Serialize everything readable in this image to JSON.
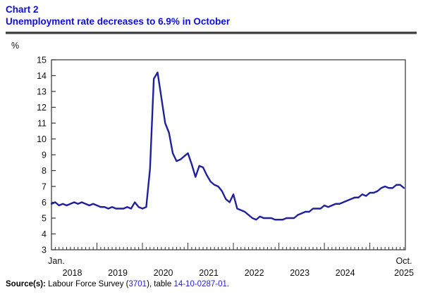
{
  "header": {
    "chart_label": "Chart 2",
    "chart_title": "Unemployment rate decreases to 6.9% in October"
  },
  "footer": {
    "source_label": "Source(s):",
    "text_before_link1": " Labour Force Survey (",
    "link1": "3701",
    "text_between_links": "), table ",
    "link2": "14-10-0287-01",
    "text_after_link2": "."
  },
  "colors": {
    "title_blue": "#0d0ddd",
    "line_blue": "#21209c",
    "link_blue": "#2323d6",
    "axis_color": "#333333",
    "rule_color": "#454545"
  },
  "chart_data": {
    "type": "line",
    "title": "Unemployment rate decreases to 6.9% in October",
    "unit_label": "%",
    "ylim": [
      3,
      15
    ],
    "ytick_step": 1,
    "grid": false,
    "legend": false,
    "x_first_month_label": "Jan.",
    "x_last_month_label": "Oct.",
    "years": [
      "2018",
      "2019",
      "2020",
      "2021",
      "2022",
      "2023",
      "2024",
      "2025"
    ],
    "series": [
      {
        "name": "Unemployment rate (%), monthly, Jan 2018 to Oct 2025",
        "values": [
          5.9,
          6.0,
          5.8,
          5.9,
          5.8,
          5.9,
          6.0,
          5.9,
          6.0,
          5.9,
          5.8,
          5.9,
          5.8,
          5.7,
          5.7,
          5.6,
          5.7,
          5.6,
          5.6,
          5.6,
          5.7,
          5.6,
          6.0,
          5.7,
          5.6,
          5.7,
          8.1,
          13.8,
          14.2,
          12.6,
          11.0,
          10.4,
          9.1,
          8.6,
          8.7,
          8.9,
          9.1,
          8.4,
          7.6,
          8.3,
          8.2,
          7.7,
          7.3,
          7.1,
          7.0,
          6.7,
          6.2,
          6.0,
          6.5,
          5.6,
          5.5,
          5.4,
          5.2,
          5.0,
          4.9,
          5.1,
          5.0,
          5.0,
          5.0,
          4.9,
          4.9,
          4.9,
          5.0,
          5.0,
          5.0,
          5.2,
          5.3,
          5.4,
          5.4,
          5.6,
          5.6,
          5.6,
          5.8,
          5.7,
          5.8,
          5.9,
          5.9,
          6.0,
          6.1,
          6.2,
          6.3,
          6.3,
          6.5,
          6.4,
          6.6,
          6.6,
          6.7,
          6.9,
          7.0,
          6.9,
          6.9,
          7.1,
          7.1,
          6.9
        ]
      }
    ]
  }
}
